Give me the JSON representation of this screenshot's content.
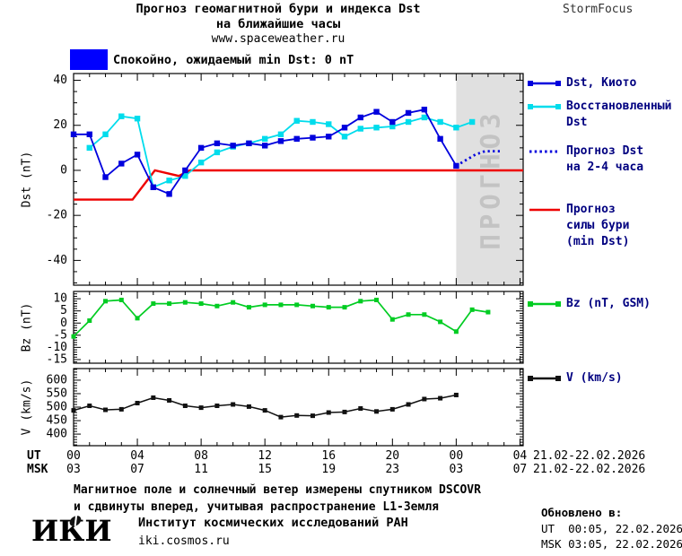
{
  "header": {
    "title_line1": "Прогноз геомагнитной бури и индекса Dst",
    "title_line2": "на ближайшие часы",
    "website": "www.spaceweather.ru",
    "brand": "StormFocus"
  },
  "status": {
    "swatch_color": "#0000ff",
    "text": "Спокойно, ожидаемый min Dst: 0 nT"
  },
  "axis": {
    "ut_label": "UT",
    "msk_label": "MSK",
    "ut_hours": [
      "00",
      "04",
      "08",
      "12",
      "16",
      "20",
      "00",
      "04"
    ],
    "msk_hours": [
      "03",
      "07",
      "11",
      "15",
      "19",
      "23",
      "03",
      "07"
    ],
    "ut_date_range": "21.02-22.02.2026",
    "msk_date_range": "21.02-22.02.2026"
  },
  "legend": {
    "text_color": "#000080",
    "dst_items": [
      {
        "swatch": "squares-line",
        "color": "#0000dd",
        "lines": [
          "Dst, Киото"
        ]
      },
      {
        "swatch": "squares-line",
        "color": "#00dcec",
        "lines": [
          "Восстановленный",
          "Dst"
        ]
      },
      {
        "swatch": "dotted",
        "color": "#0000dd",
        "lines": [
          "Прогноз Dst",
          "на 2-4 часа"
        ]
      },
      {
        "swatch": "line",
        "color": "#ee0000",
        "lines": [
          "Прогноз",
          "силы бури",
          "(min Dst)"
        ]
      }
    ],
    "bz_item": {
      "swatch": "squares-line",
      "color": "#00cc22",
      "lines": [
        "Bz (nT, GSM)"
      ]
    },
    "v_item": {
      "swatch": "squares-line",
      "color": "#111111",
      "lines": [
        "V (km/s)"
      ]
    }
  },
  "chart_data": [
    {
      "type": "line",
      "panel": "dst",
      "ylabel": "Dst (nT)",
      "ylim": [
        -51,
        43
      ],
      "xlim": [
        0,
        28.2
      ],
      "yticks": [
        40,
        20,
        0,
        -20,
        -40
      ],
      "ytick_minor_step": 5,
      "xticks": [
        0,
        4,
        8,
        12,
        16,
        20,
        24,
        28
      ],
      "xtick_minor_step": 1,
      "forecast_region": {
        "x_start": 24,
        "watermark": "ПРОГНОЗ",
        "fill": "#e0e0e0",
        "watermark_color": "#c3c3c3"
      },
      "series": [
        {
          "name": "Прогноз силы бури (min Dst)",
          "color": "#ee0000",
          "style": "solid",
          "marker": false,
          "width": 2.4,
          "x": [
            0,
            3.7,
            5.1,
            6.6,
            7.3,
            28.2
          ],
          "values": [
            -13,
            -13,
            0,
            -2.5,
            0,
            0
          ]
        },
        {
          "name": "Восстановленный Dst",
          "color": "#00dcec",
          "style": "solid",
          "marker": true,
          "width": 1.8,
          "x": [
            1,
            2,
            3,
            4,
            5,
            6,
            7,
            8,
            9,
            10,
            11,
            12,
            13,
            14,
            15,
            16,
            17,
            18,
            19,
            20,
            21,
            22,
            23,
            24,
            25
          ],
          "values": [
            10,
            16,
            24,
            23,
            -7.5,
            -4.5,
            -2.5,
            3.5,
            8,
            10.5,
            12,
            14,
            16,
            22,
            21.5,
            20.5,
            15,
            18.5,
            19,
            19.5,
            21.5,
            23.5,
            21.5,
            19,
            21.5
          ]
        },
        {
          "name": "Dst, Киото",
          "color": "#0000dd",
          "style": "solid",
          "marker": true,
          "width": 1.8,
          "x": [
            0,
            1,
            2,
            3,
            4,
            5,
            6,
            7,
            8,
            9,
            10,
            11,
            12,
            13,
            14,
            15,
            16,
            17,
            18,
            19,
            20,
            21,
            22,
            23,
            24
          ],
          "values": [
            16,
            16,
            -3,
            3,
            7,
            -7.5,
            -10.5,
            0,
            10,
            12,
            11,
            12,
            11,
            13,
            14,
            14.5,
            15,
            19,
            23.5,
            26,
            21.5,
            25.5,
            27,
            14,
            2
          ]
        },
        {
          "name": "Прогноз Dst на 2-4 часа",
          "color": "#0000dd",
          "style": "dotted",
          "marker": false,
          "width": 2.8,
          "x": [
            24,
            24.6,
            25.2,
            25.8,
            26.9
          ],
          "values": [
            2,
            4.5,
            7,
            8.5,
            8.5
          ]
        }
      ]
    },
    {
      "type": "line",
      "panel": "bz",
      "ylabel": "Bz (nT)",
      "ylim": [
        -16.5,
        13
      ],
      "xlim": [
        0,
        28.2
      ],
      "yticks": [
        10,
        5,
        0,
        -5,
        -10,
        -15
      ],
      "ytick_minor_step": 1,
      "xticks": [
        0,
        4,
        8,
        12,
        16,
        20,
        24,
        28
      ],
      "xtick_minor_step": 1,
      "series": [
        {
          "name": "Bz (nT, GSM)",
          "color": "#00cc22",
          "style": "solid",
          "marker": true,
          "width": 1.7,
          "x": [
            0,
            1,
            2,
            3,
            4,
            5,
            6,
            7,
            8,
            9,
            10,
            11,
            12,
            13,
            14,
            15,
            16,
            17,
            18,
            19,
            20,
            21,
            22,
            23,
            24,
            25,
            26
          ],
          "values": [
            -5.5,
            1,
            9,
            9.5,
            2,
            8,
            8,
            8.5,
            8,
            7,
            8.5,
            6.5,
            7.5,
            7.5,
            7.5,
            7,
            6.5,
            6.5,
            9,
            9.5,
            1.5,
            3.5,
            3.5,
            0.5,
            -3.5,
            5.5,
            4.5
          ]
        }
      ]
    },
    {
      "type": "line",
      "panel": "v",
      "ylabel": "V (km/s)",
      "ylim": [
        357,
        643
      ],
      "yticks": [
        600,
        550,
        500,
        450,
        400
      ],
      "ytick_minor_step": 10,
      "xlim": [
        0,
        28.2
      ],
      "xticks": [
        0,
        4,
        8,
        12,
        16,
        20,
        24,
        28
      ],
      "xtick_minor_step": 1,
      "series": [
        {
          "name": "V (km/s)",
          "color": "#111111",
          "style": "solid",
          "marker": true,
          "width": 1.5,
          "x": [
            0,
            1,
            2,
            3,
            4,
            5,
            6,
            7,
            8,
            9,
            10,
            11,
            12,
            13,
            14,
            15,
            16,
            17,
            18,
            19,
            20,
            21,
            22,
            23,
            24
          ],
          "values": [
            488,
            505,
            490,
            492,
            515,
            535,
            525,
            505,
            498,
            505,
            510,
            502,
            488,
            463,
            469,
            468,
            480,
            482,
            495,
            484,
            492,
            510,
            530,
            533,
            545
          ]
        }
      ]
    }
  ],
  "footer": {
    "line1": "Магнитное поле и солнечный ветер измерены спутником DSCOVR",
    "line2": "и сдвинуты вперед, учитывая распространение L1-Земля",
    "logo_text": "ИКИ",
    "institute": "Институт космических исследований РАН",
    "institute_site": "iki.cosmos.ru",
    "updated_label": "Обновлено в:",
    "updated_ut": "UT  00:05, 22.02.2026",
    "updated_msk": "MSK 03:05, 22.02.2026"
  }
}
